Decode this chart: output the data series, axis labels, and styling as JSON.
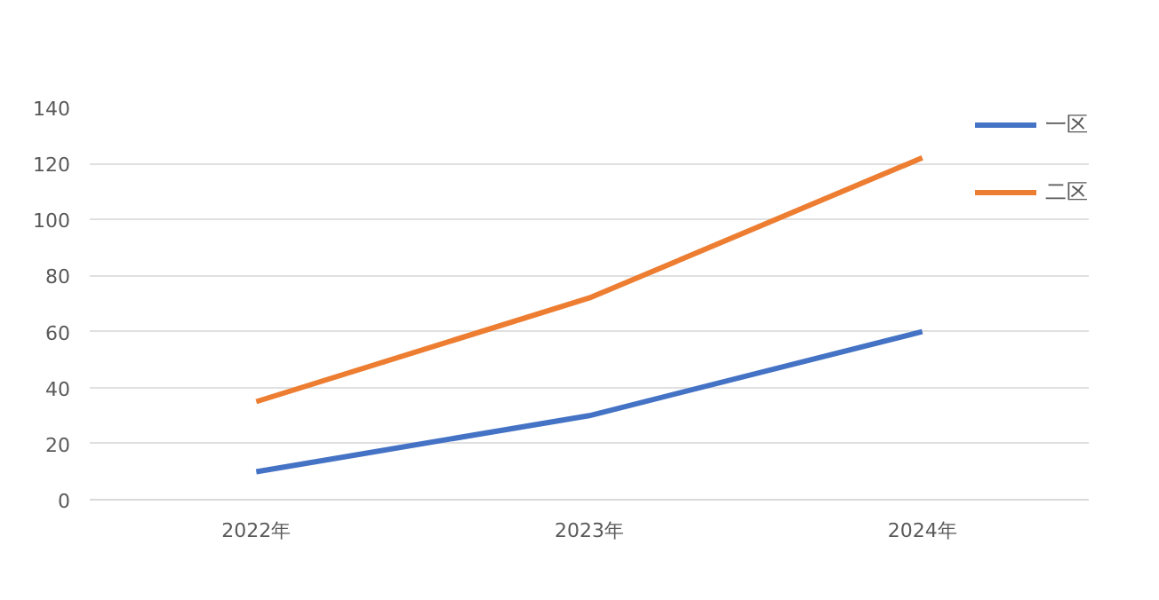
{
  "chart_data": {
    "type": "line",
    "categories": [
      "2022年",
      "2023年",
      "2024年"
    ],
    "series": [
      {
        "name": "一区",
        "color": "#4472c4",
        "values": [
          10,
          30,
          60
        ]
      },
      {
        "name": "二区",
        "color": "#ed7d31",
        "values": [
          35,
          72,
          122
        ]
      }
    ],
    "ylim": [
      0,
      140
    ],
    "yticks": [
      0,
      20,
      40,
      60,
      80,
      100,
      120,
      140
    ],
    "grid": "y",
    "legend": "right",
    "marker": "none",
    "line_style": "solid"
  }
}
